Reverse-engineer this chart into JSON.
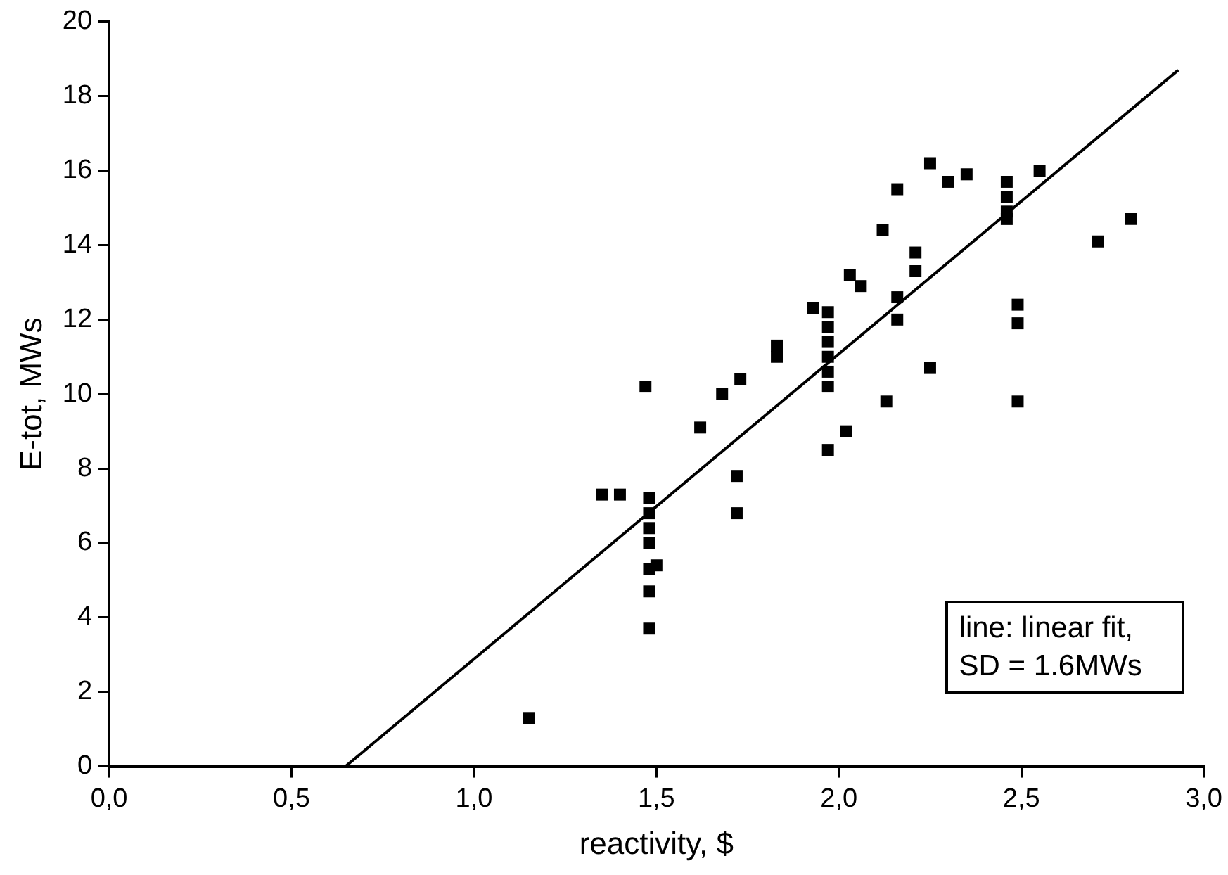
{
  "chart_data": {
    "type": "scatter",
    "xlabel": "reactivity, $",
    "ylabel": "E-tot, MWs",
    "xlim": [
      0,
      3
    ],
    "ylim": [
      0,
      20
    ],
    "xticks": [
      {
        "value": 0,
        "label": "0,0"
      },
      {
        "value": 0.5,
        "label": "0,5"
      },
      {
        "value": 1,
        "label": "1,0"
      },
      {
        "value": 1.5,
        "label": "1,5"
      },
      {
        "value": 2,
        "label": "2,0"
      },
      {
        "value": 2.5,
        "label": "2,5"
      },
      {
        "value": 3,
        "label": "3,0"
      }
    ],
    "yticks": [
      0,
      2,
      4,
      6,
      8,
      10,
      12,
      14,
      16,
      18,
      20
    ],
    "grid": false,
    "legend": false,
    "marker": "square",
    "series": [
      {
        "color": "#000000",
        "x": [
          1.15,
          1.47,
          1.35,
          1.4,
          1.48,
          1.48,
          1.48,
          1.48,
          1.5,
          1.48,
          1.48,
          1.48,
          1.62,
          1.68,
          1.73,
          1.72,
          1.72,
          1.83,
          1.83,
          1.93,
          1.97,
          1.97,
          1.97,
          1.97,
          1.97,
          1.97,
          2.02,
          1.97,
          2.03,
          2.06,
          2.13,
          2.12,
          2.16,
          2.16,
          2.16,
          2.21,
          2.21,
          2.25,
          2.3,
          2.35,
          2.25,
          2.46,
          2.46,
          2.46,
          2.46,
          2.55,
          2.49,
          2.49,
          2.49,
          2.71,
          2.8
        ],
        "values": [
          1.3,
          10.2,
          7.3,
          7.3,
          7.2,
          6.8,
          6.4,
          6.0,
          5.4,
          5.3,
          4.7,
          3.7,
          9.1,
          10.0,
          10.4,
          7.8,
          6.8,
          11.0,
          11.3,
          12.3,
          12.2,
          11.8,
          11.4,
          11.0,
          10.6,
          10.2,
          9.0,
          8.5,
          13.2,
          12.9,
          9.8,
          14.4,
          15.5,
          12.6,
          12.0,
          13.8,
          13.3,
          16.2,
          15.7,
          15.9,
          10.7,
          15.7,
          15.3,
          14.9,
          14.7,
          16.0,
          12.4,
          11.9,
          9.8,
          14.1,
          14.7
        ]
      },
      {
        "type": "line",
        "color": "#000000",
        "marker": "none",
        "line_style": "solid",
        "x": [
          0.648,
          2.93
        ],
        "values": [
          0,
          18.7
        ]
      }
    ],
    "annotations": [
      "line: linear fit, SD = 1.6MWs"
    ]
  }
}
